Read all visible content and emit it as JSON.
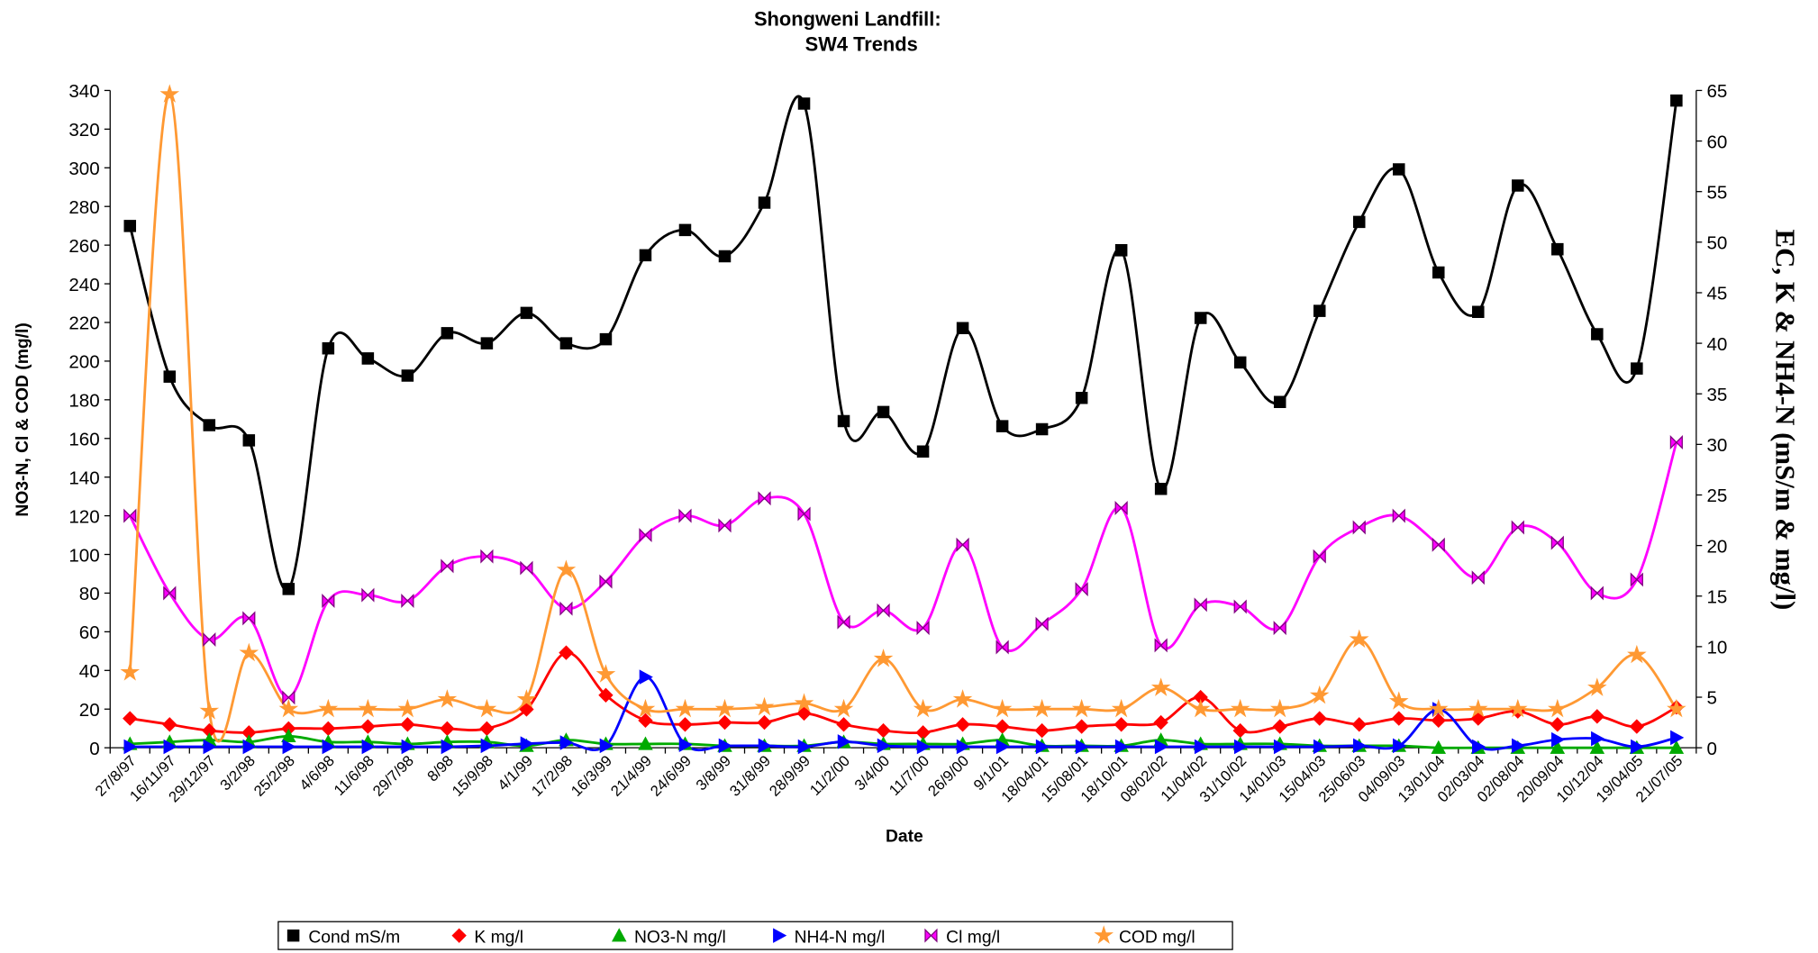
{
  "chart_data": {
    "type": "line",
    "title": [
      "Shongweni Landfill:",
      "SW4 Trends"
    ],
    "x_label": "Date",
    "y_label": "NO3-N, Cl & COD (mg/l)",
    "y2_label": "EC, K & NH4-N (mS/m & mg/l)",
    "categories": [
      "27/8/97",
      "16/11/97",
      "29/12/97",
      "3/2/98",
      "25/2/98",
      "4/6/98",
      "11/6/98",
      "29/7/98",
      "8/98",
      "15/9/98",
      "4/1/99",
      "17/2/98",
      "16/3/99",
      "21/4/99",
      "24/6/99",
      "3/8/99",
      "31/8/99",
      "28/9/99",
      "11/2/00",
      "3/4/00",
      "11/7/00",
      "26/9/00",
      "9/1/01",
      "18/04/01",
      "15/08/01",
      "18/10/01",
      "08/02/02",
      "11/04/02",
      "31/10/02",
      "14/01/03",
      "15/04/03",
      "25/06/03",
      "04/09/03",
      "13/01/04",
      "02/03/04",
      "02/08/04",
      "20/09/04",
      "10/12/04",
      "19/04/05",
      "21/07/05"
    ],
    "ylim": [
      0,
      340
    ],
    "yticks": [
      0,
      20,
      40,
      60,
      80,
      100,
      120,
      140,
      160,
      180,
      200,
      220,
      240,
      260,
      280,
      300,
      320,
      340
    ],
    "y2lim": [
      0,
      65
    ],
    "y2ticks": [
      0,
      5,
      10,
      15,
      20,
      25,
      30,
      35,
      40,
      45,
      50,
      55,
      60,
      65
    ],
    "legend": "bottom",
    "series": [
      {
        "name": "Cond mS/m",
        "color": "#000000",
        "marker": "square",
        "axis": "y2",
        "values": [
          51.6,
          36.7,
          31.9,
          30.4,
          15.7,
          39.5,
          38.5,
          36.8,
          41.0,
          40.0,
          43.0,
          40.0,
          40.4,
          48.7,
          51.2,
          48.6,
          53.9,
          63.7,
          32.3,
          33.2,
          29.3,
          41.5,
          31.8,
          31.5,
          34.6,
          49.2,
          25.6,
          42.5,
          38.1,
          34.2,
          43.2,
          52.0,
          57.2,
          47.0,
          43.1,
          55.6,
          49.3,
          40.9,
          37.5,
          64.0
        ]
      },
      {
        "name": "K mg/l",
        "color": "#ff0000",
        "marker": "diamond",
        "axis": "y2",
        "values": [
          2.9,
          2.3,
          1.7,
          1.5,
          1.9,
          1.9,
          2.1,
          2.3,
          1.9,
          1.9,
          3.8,
          9.4,
          5.2,
          2.7,
          2.3,
          2.5,
          2.5,
          3.4,
          2.3,
          1.7,
          1.5,
          2.3,
          2.1,
          1.7,
          2.1,
          2.3,
          2.5,
          5.0,
          1.7,
          2.1,
          2.9,
          2.3,
          2.9,
          2.7,
          2.9,
          3.6,
          2.3,
          3.1,
          2.1,
          4.0
        ]
      },
      {
        "name": "NO3-N mg/l",
        "color": "#00aa00",
        "marker": "triangle-up",
        "values": [
          2,
          3,
          4,
          3,
          6,
          3,
          3,
          2,
          3,
          3,
          1,
          4,
          2,
          2,
          2,
          1,
          1,
          1,
          3,
          2,
          2,
          2,
          4,
          1,
          1,
          1,
          4,
          2,
          2,
          2,
          1,
          1,
          1,
          0,
          0,
          0,
          0,
          0,
          0,
          0
        ]
      },
      {
        "name": "NH4-N mg/l",
        "color": "#0000ff",
        "marker": "triangle-right",
        "axis": "y2",
        "values": [
          0.1,
          0.1,
          0.1,
          0.1,
          0.1,
          0.1,
          0.1,
          0.1,
          0.1,
          0.2,
          0.4,
          0.5,
          0.2,
          7.0,
          0.3,
          0.2,
          0.2,
          0.1,
          0.6,
          0.2,
          0.1,
          0.1,
          0.1,
          0.1,
          0.1,
          0.1,
          0.1,
          0.1,
          0.1,
          0.1,
          0.1,
          0.2,
          0.2,
          3.8,
          0.1,
          0.2,
          0.8,
          0.9,
          0.1,
          1.0
        ]
      },
      {
        "name": "Cl mg/l",
        "color": "#ff00ff",
        "marker": "bowtie",
        "values": [
          120,
          80,
          56,
          67,
          26,
          76,
          79,
          76,
          94,
          99,
          93,
          72,
          86,
          110,
          120,
          115,
          129,
          121,
          65,
          71,
          62,
          105,
          52,
          64,
          82,
          124,
          53,
          74,
          73,
          62,
          99,
          114,
          120,
          105,
          88,
          114,
          106,
          80,
          87,
          158
        ]
      },
      {
        "name": "COD mg/l",
        "color": "#ff9933",
        "marker": "star",
        "values": [
          39,
          338,
          19,
          49,
          20,
          20,
          20,
          20,
          25,
          20,
          25,
          92,
          38,
          20,
          20,
          20,
          21,
          23,
          20,
          46,
          20,
          25,
          20,
          20,
          20,
          20,
          31,
          20,
          20,
          20,
          27,
          56,
          24,
          20,
          20,
          20,
          20,
          31,
          48,
          20
        ]
      }
    ]
  }
}
